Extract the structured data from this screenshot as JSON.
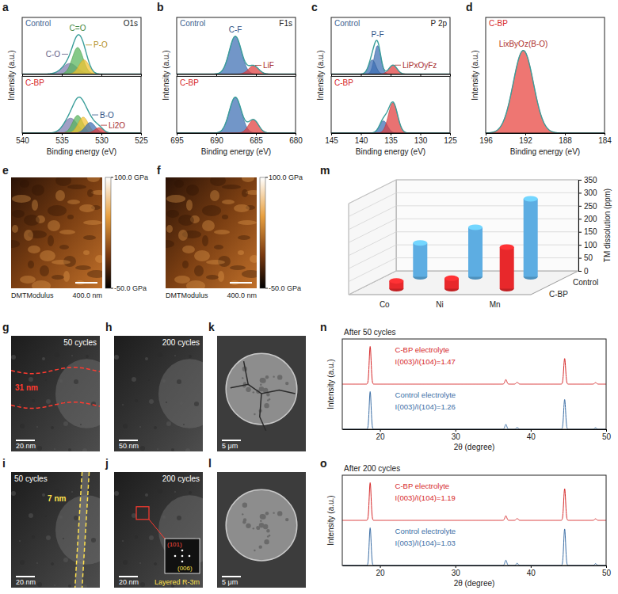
{
  "chart_data": [
    {
      "type": "area",
      "letter": "a",
      "element": "O1s",
      "x_label": "Binding energy (eV)",
      "y_label": "Intensity (a.u.)",
      "xlim": [
        540,
        525
      ],
      "xticks": [
        540,
        535,
        530,
        525
      ],
      "ylim": [
        0,
        1.6
      ],
      "tick_labels": "x",
      "color": "#3a9e9a",
      "series": [
        {
          "name": "Control",
          "color": "#3d5f8f",
          "peaks": [
            {
              "label": "C-O",
              "center": 534.0,
              "height": 0.3,
              "fwhm": 2.2,
              "color": "#7d7bb0"
            },
            {
              "label": "C=O",
              "center": 533.0,
              "height": 0.75,
              "fwhm": 1.6,
              "color": "#56b45a"
            },
            {
              "label": "P-O",
              "center": 532.2,
              "height": 0.4,
              "fwhm": 1.5,
              "color": "#f2c230"
            }
          ]
        },
        {
          "name": "C-BP",
          "color": "#d62728",
          "peaks": [
            {
              "center": 533.9,
              "height": 0.42,
              "fwhm": 2.0,
              "color": "#7d7bb0"
            },
            {
              "center": 533.0,
              "height": 0.5,
              "fwhm": 1.5,
              "color": "#56b45a"
            },
            {
              "center": 532.3,
              "height": 0.45,
              "fwhm": 1.5,
              "color": "#f2c230"
            },
            {
              "label": "B-O",
              "center": 531.4,
              "height": 0.3,
              "fwhm": 1.5,
              "color": "#3b6db3"
            },
            {
              "label": "Li2O",
              "center": 530.3,
              "height": 0.15,
              "fwhm": 1.3,
              "color": "#e03b3b"
            }
          ]
        }
      ]
    },
    {
      "type": "area",
      "letter": "b",
      "element": "F1s",
      "x_label": "Binding energy (eV)",
      "y_label": "Intensity (a.u.)",
      "xlim": [
        695,
        680
      ],
      "xticks": [
        695,
        690,
        685,
        680
      ],
      "ylim": [
        0,
        1.5
      ],
      "tick_labels": "x",
      "color": "#3a9e9a",
      "series": [
        {
          "name": "Control",
          "color": "#3d5f8f",
          "peaks": [
            {
              "label": "C-F",
              "center": 687.6,
              "height": 1.0,
              "fwhm": 1.8,
              "color": "#3b6db3"
            },
            {
              "label": "LiF",
              "center": 685.3,
              "height": 0.22,
              "fwhm": 1.5,
              "color": "#e03b3b"
            }
          ]
        },
        {
          "name": "C-BP",
          "color": "#d62728",
          "peaks": [
            {
              "center": 687.6,
              "height": 0.95,
              "fwhm": 1.8,
              "color": "#3b6db3"
            },
            {
              "center": 685.3,
              "height": 0.35,
              "fwhm": 1.5,
              "color": "#e03b3b"
            }
          ]
        }
      ]
    },
    {
      "type": "area",
      "letter": "c",
      "element": "P 2p",
      "x_label": "Binding energy (eV)",
      "y_label": "Intensity (a.u.)",
      "xlim": [
        145,
        125
      ],
      "xticks": [
        145,
        140,
        135,
        130,
        125
      ],
      "ylim": [
        0,
        1.4
      ],
      "tick_labels": "x",
      "color": "#3a9e9a",
      "series": [
        {
          "name": "Control",
          "color": "#3d5f8f",
          "peaks": [
            {
              "label": "P-F",
              "center": 137.2,
              "height": 0.7,
              "fwhm": 1.3,
              "color": "#3b6db3"
            },
            {
              "center": 138.1,
              "height": 0.35,
              "fwhm": 1.4,
              "color": "#3b6db3"
            },
            {
              "label": "LiPxOyFz",
              "center": 134.6,
              "height": 0.22,
              "fwhm": 1.6,
              "color": "#e03b3b"
            }
          ]
        },
        {
          "name": "C-BP",
          "color": "#d62728",
          "peaks": [
            {
              "center": 136.2,
              "height": 0.3,
              "fwhm": 1.6,
              "color": "#3b6db3"
            },
            {
              "center": 134.6,
              "height": 0.75,
              "fwhm": 1.8,
              "color": "#e03b3b"
            }
          ]
        }
      ]
    },
    {
      "type": "area",
      "letter": "d",
      "x_label": "Binding energy (eV)",
      "y_label": "Intensity (a.u.)",
      "xlim": [
        196,
        184
      ],
      "xticks": [
        196,
        192,
        188,
        184
      ],
      "ylim": [
        0,
        1.4
      ],
      "tick_labels": "x",
      "color": "#3a9e9a",
      "series": [
        {
          "name": "C-BP",
          "color": "#d62728",
          "peaks": [
            {
              "label": "LixByOz(B-O)",
              "center": 192.2,
              "height": 1.0,
              "fwhm": 2.4,
              "color": "#e8413c"
            }
          ]
        }
      ]
    },
    {
      "type": "bar",
      "letter": "m",
      "y_label": "TM dissolution (ppm)",
      "categories": [
        "Co",
        "Ni",
        "Mn"
      ],
      "series": [
        {
          "name": "Control",
          "color": "#5dade2",
          "values": [
            130,
            190,
            300
          ]
        },
        {
          "name": "C-BP",
          "color": "#e8282b",
          "values": [
            30,
            40,
            160
          ]
        }
      ],
      "ylim": [
        0,
        350
      ],
      "yticks": [
        0,
        50,
        100,
        150,
        200,
        250,
        300,
        350
      ],
      "grid": true
    },
    {
      "type": "line",
      "letter": "n",
      "title": "After 50 cycles",
      "x_label": "2θ (degree)",
      "y_label": "Intensity (a.u.)",
      "xlim": [
        15,
        50
      ],
      "xticks": [
        20,
        30,
        40,
        50
      ],
      "ylim": [
        0,
        2.4
      ],
      "tick_labels": "x",
      "series": [
        {
          "name": "C-BP electrolyte",
          "color": "#d62728",
          "annotation": "I(003)/I(104)=1.47",
          "peaks": [
            {
              "center": 18.7,
              "height": 1.0
            },
            {
              "center": 36.7,
              "height": 0.12
            },
            {
              "center": 38.2,
              "height": 0.05
            },
            {
              "center": 44.5,
              "height": 0.68
            },
            {
              "center": 48.6,
              "height": 0.04
            }
          ]
        },
        {
          "name": "Control electrolyte",
          "color": "#3b6ea5",
          "annotation": "I(003)/I(104)=1.26",
          "peaks": [
            {
              "center": 18.7,
              "height": 1.0
            },
            {
              "center": 36.7,
              "height": 0.13
            },
            {
              "center": 38.2,
              "height": 0.05
            },
            {
              "center": 44.5,
              "height": 0.79
            },
            {
              "center": 48.6,
              "height": 0.04
            }
          ]
        }
      ]
    },
    {
      "type": "line",
      "letter": "o",
      "title": "After 200 cycles",
      "x_label": "2θ (degree)",
      "y_label": "Intensity (a.u.)",
      "xlim": [
        15,
        50
      ],
      "xticks": [
        20,
        30,
        40,
        50
      ],
      "ylim": [
        0,
        2.4
      ],
      "tick_labels": "x",
      "series": [
        {
          "name": "C-BP electrolyte",
          "color": "#d62728",
          "annotation": "I(003)/I(104)=1.19",
          "peaks": [
            {
              "center": 18.7,
              "height": 1.0
            },
            {
              "center": 36.7,
              "height": 0.12
            },
            {
              "center": 38.2,
              "height": 0.05
            },
            {
              "center": 44.5,
              "height": 0.84
            },
            {
              "center": 48.6,
              "height": 0.04
            }
          ]
        },
        {
          "name": "Control electrolyte",
          "color": "#3b6ea5",
          "annotation": "I(003)/I(104)=1.03",
          "peaks": [
            {
              "center": 18.7,
              "height": 1.0
            },
            {
              "center": 36.7,
              "height": 0.14
            },
            {
              "center": 38.2,
              "height": 0.06
            },
            {
              "center": 44.5,
              "height": 0.97
            },
            {
              "center": 48.6,
              "height": 0.05
            }
          ]
        }
      ]
    }
  ],
  "images": [
    {
      "letter": "e",
      "kind": "afm",
      "channel": "DMTModulus",
      "scale_bar": "400.0 nm",
      "colorbar": {
        "range": [
          -50,
          100
        ],
        "ticks": [
          {
            "value": 100,
            "label": "100.0 GPa"
          },
          {
            "value": -50,
            "label": "-50.0 GPa"
          }
        ]
      }
    },
    {
      "letter": "f",
      "kind": "afm",
      "channel": "DMTModulus",
      "scale_bar": "400.0 nm",
      "colorbar": {
        "range": [
          -50,
          100
        ],
        "ticks": [
          {
            "value": 100,
            "label": "100.0 GPa"
          },
          {
            "value": -50,
            "label": "-50.0 GPa"
          }
        ]
      }
    },
    {
      "letter": "g",
      "kind": "tem",
      "caption": "50 cycles",
      "scale_bar": "20 nm",
      "thickness": "31 nm"
    },
    {
      "letter": "h",
      "kind": "tem",
      "caption": "200 cycles",
      "scale_bar": "50 nm"
    },
    {
      "letter": "k",
      "kind": "sem",
      "scale_bar": "5 μm"
    },
    {
      "letter": "i",
      "kind": "tem",
      "caption": "50 cycles",
      "scale_bar": "20 nm",
      "thickness": "7 nm"
    },
    {
      "letter": "j",
      "kind": "tem",
      "caption": "200 cycles",
      "scale_bar": "20 nm",
      "fft": {
        "spots": [
          "(101)",
          "(006)"
        ],
        "phase": "Layered R-3m"
      }
    },
    {
      "letter": "l",
      "kind": "sem",
      "scale_bar": "5 μm"
    }
  ]
}
